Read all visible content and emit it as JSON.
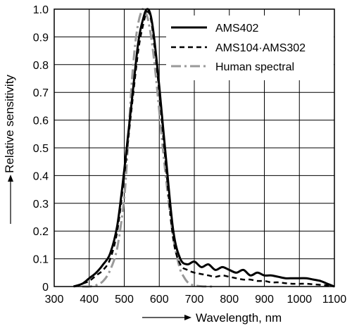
{
  "chart_data": {
    "type": "line",
    "title": "",
    "xlabel": "Wavelength, nm",
    "ylabel": "Relative sensitivity",
    "xlim": [
      300,
      1100
    ],
    "ylim": [
      0,
      1.0
    ],
    "x_ticks": [
      300,
      400,
      500,
      600,
      700,
      800,
      900,
      1000,
      1100
    ],
    "y_ticks": [
      0,
      0.1,
      0.2,
      0.3,
      0.4,
      0.5,
      0.6,
      0.7,
      0.8,
      0.9,
      1.0
    ],
    "x_tick_labels": [
      "300",
      "400",
      "500",
      "600",
      "700",
      "800",
      "900",
      "1000",
      "1100"
    ],
    "y_tick_labels": [
      "0",
      "0.1",
      "0.2",
      "0.3",
      "0.4",
      "0.5",
      "0.6",
      "0.7",
      "0.8",
      "0.9",
      "1.0"
    ],
    "grid": true,
    "legend_position": "top-right",
    "series": [
      {
        "name": "AMS402",
        "style": "solid",
        "color": "#000000",
        "x": [
          355,
          380,
          400,
          420,
          440,
          460,
          480,
          500,
          520,
          540,
          555,
          565,
          575,
          585,
          600,
          620,
          640,
          660,
          680,
          700,
          720,
          740,
          760,
          780,
          800,
          820,
          840,
          860,
          880,
          900,
          920,
          940,
          960,
          980,
          1000,
          1020,
          1040,
          1060,
          1080,
          1100
        ],
        "y": [
          0.0,
          0.01,
          0.03,
          0.05,
          0.08,
          0.12,
          0.22,
          0.42,
          0.65,
          0.88,
          0.97,
          1.0,
          0.98,
          0.9,
          0.72,
          0.45,
          0.2,
          0.1,
          0.08,
          0.09,
          0.07,
          0.08,
          0.06,
          0.07,
          0.06,
          0.05,
          0.06,
          0.04,
          0.05,
          0.04,
          0.04,
          0.035,
          0.03,
          0.03,
          0.03,
          0.03,
          0.025,
          0.02,
          0.01,
          0.0
        ]
      },
      {
        "name": "AMS104·AMS302",
        "style": "dashed",
        "color": "#000000",
        "x": [
          360,
          380,
          400,
          420,
          440,
          460,
          480,
          500,
          520,
          540,
          555,
          565,
          575,
          585,
          600,
          620,
          640,
          660,
          680,
          700,
          720,
          740,
          760,
          780,
          800,
          820,
          840,
          860,
          880,
          900,
          920,
          940,
          960,
          980,
          1000,
          1020,
          1040,
          1060,
          1080,
          1100
        ],
        "y": [
          0.0,
          0.01,
          0.02,
          0.04,
          0.06,
          0.1,
          0.2,
          0.4,
          0.63,
          0.85,
          0.95,
          0.99,
          0.97,
          0.88,
          0.7,
          0.42,
          0.17,
          0.08,
          0.06,
          0.05,
          0.045,
          0.04,
          0.035,
          0.04,
          0.035,
          0.03,
          0.025,
          0.025,
          0.02,
          0.02,
          0.015,
          0.015,
          0.012,
          0.01,
          0.01,
          0.01,
          0.008,
          0.006,
          0.004,
          0.0
        ]
      },
      {
        "name": "Human spectral",
        "style": "dashdot",
        "color": "#999999",
        "x": [
          380,
          400,
          420,
          440,
          460,
          480,
          500,
          510,
          520,
          530,
          540,
          550,
          555,
          560,
          570,
          580,
          590,
          600,
          610,
          620,
          630,
          640,
          650,
          660,
          670,
          680,
          690,
          700,
          720,
          740,
          760
        ],
        "y": [
          0.0,
          0.0,
          0.005,
          0.02,
          0.06,
          0.14,
          0.32,
          0.5,
          0.71,
          0.86,
          0.95,
          0.995,
          1.0,
          0.995,
          0.95,
          0.87,
          0.76,
          0.63,
          0.5,
          0.38,
          0.27,
          0.175,
          0.11,
          0.06,
          0.035,
          0.017,
          0.008,
          0.004,
          0.001,
          0.0,
          0.0
        ]
      }
    ]
  }
}
